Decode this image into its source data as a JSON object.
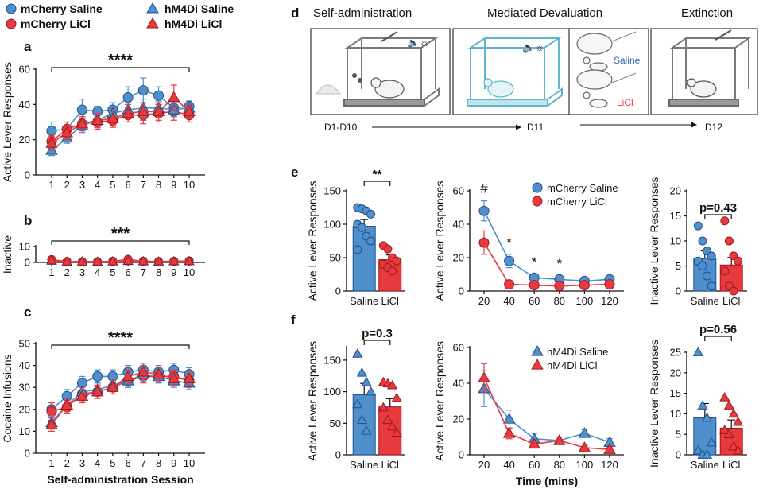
{
  "colors": {
    "blue": "#4f8fcc",
    "blue_dark": "#1f4f8a",
    "red": "#e8393f",
    "red_dark": "#9c1a1f",
    "panel_border": "#333333",
    "cage_gray": "#888888",
    "cage_teal": "#5fb7c9"
  },
  "legend": {
    "items": [
      {
        "label": "mCherry Saline",
        "marker": "circle",
        "color": "blue"
      },
      {
        "label": "mCherry LiCl",
        "marker": "circle",
        "color": "red"
      },
      {
        "label": "hM4Di Saline",
        "marker": "triangle",
        "color": "blue"
      },
      {
        "label": "hM4Di LiCl",
        "marker": "triangle",
        "color": "red"
      }
    ]
  },
  "panel_letters": {
    "a": "a",
    "b": "b",
    "c": "c",
    "d": "d",
    "e": "e",
    "f": "f"
  },
  "schematic": {
    "stages": [
      "Self-administration",
      "Mediated Devaluation",
      "Extinction"
    ],
    "outcomes": [
      "Saline",
      "LiCl"
    ],
    "timeline": [
      "D1-D10",
      "D11",
      "D12"
    ]
  },
  "chart_data": [
    {
      "id": "a",
      "type": "line",
      "ylabel": "Active Lever Responses",
      "xlabel": "",
      "x": [
        1,
        2,
        3,
        4,
        5,
        6,
        7,
        8,
        9,
        10
      ],
      "ylim": [
        0,
        60
      ],
      "yticks": [
        0,
        20,
        40,
        60
      ],
      "significance": "****",
      "series": [
        {
          "name": "mCherry Saline",
          "marker": "circle",
          "color": "blue",
          "values": [
            25,
            26,
            37,
            36,
            37,
            44,
            48,
            45,
            38,
            39
          ],
          "err": [
            5,
            4,
            6,
            3,
            4,
            6,
            7,
            5,
            5,
            3
          ]
        },
        {
          "name": "mCherry LiCl",
          "marker": "circle",
          "color": "red",
          "values": [
            19,
            26,
            29,
            30,
            31,
            34,
            34,
            35,
            36,
            34
          ],
          "err": [
            4,
            4,
            4,
            4,
            4,
            4,
            5,
            5,
            5,
            4
          ]
        },
        {
          "name": "hM4Di Saline",
          "marker": "triangle",
          "color": "blue",
          "values": [
            14,
            21,
            28,
            31,
            35,
            37,
            38,
            38,
            37,
            38
          ],
          "err": [
            3,
            3,
            4,
            4,
            4,
            4,
            5,
            4,
            4,
            3
          ]
        },
        {
          "name": "hM4Di LiCl",
          "marker": "triangle",
          "color": "red",
          "values": [
            18,
            24,
            29,
            31,
            32,
            35,
            36,
            36,
            44,
            36
          ],
          "err": [
            4,
            4,
            4,
            4,
            4,
            5,
            5,
            5,
            7,
            4
          ]
        }
      ]
    },
    {
      "id": "b",
      "type": "line",
      "ylabel": "Inactive",
      "xlabel": "",
      "x": [
        1,
        2,
        3,
        4,
        5,
        6,
        7,
        8,
        9,
        10
      ],
      "ylim": [
        0,
        10
      ],
      "yticks": [
        0,
        10
      ],
      "significance": "***",
      "series": [
        {
          "name": "mCherry Saline",
          "marker": "circle",
          "color": "blue",
          "values": [
            1.5,
            0.5,
            0.5,
            0.5,
            0.8,
            1.0,
            0.8,
            0.6,
            0.8,
            1.0
          ],
          "err": [
            0.5,
            0.3,
            0.3,
            0.3,
            0.3,
            0.4,
            0.3,
            0.3,
            0.3,
            0.4
          ]
        },
        {
          "name": "mCherry LiCl",
          "marker": "circle",
          "color": "red",
          "values": [
            1.8,
            0.6,
            0.4,
            0.4,
            0.6,
            2.0,
            0.6,
            0.5,
            0.6,
            0.8
          ],
          "err": [
            0.6,
            0.3,
            0.3,
            0.3,
            0.3,
            0.8,
            0.3,
            0.3,
            0.3,
            0.4
          ]
        },
        {
          "name": "hM4Di Saline",
          "marker": "triangle",
          "color": "blue",
          "values": [
            1.0,
            0.4,
            0.6,
            0.4,
            0.6,
            0.8,
            0.6,
            0.5,
            0.6,
            0.7
          ],
          "err": [
            0.4,
            0.3,
            0.3,
            0.3,
            0.3,
            0.3,
            0.3,
            0.3,
            0.3,
            0.3
          ]
        },
        {
          "name": "hM4Di LiCl",
          "marker": "triangle",
          "color": "red",
          "values": [
            1.2,
            0.5,
            0.5,
            0.5,
            0.6,
            0.9,
            0.7,
            0.6,
            0.7,
            0.8
          ],
          "err": [
            0.4,
            0.3,
            0.3,
            0.3,
            0.3,
            0.3,
            0.3,
            0.3,
            0.3,
            0.3
          ]
        }
      ]
    },
    {
      "id": "c",
      "type": "line",
      "ylabel": "Cocaine Infusions",
      "xlabel": "Self-administration Session",
      "x": [
        1,
        2,
        3,
        4,
        5,
        6,
        7,
        8,
        9,
        10
      ],
      "ylim": [
        0,
        50
      ],
      "yticks": [
        0,
        10,
        20,
        30,
        40,
        50
      ],
      "significance": "****",
      "series": [
        {
          "name": "mCherry Saline",
          "marker": "circle",
          "color": "blue",
          "values": [
            20,
            26,
            32,
            35,
            35,
            37,
            38,
            37,
            38,
            36
          ],
          "err": [
            3,
            3,
            3,
            3,
            3,
            3,
            3,
            3,
            3,
            3
          ]
        },
        {
          "name": "mCherry LiCl",
          "marker": "circle",
          "color": "red",
          "values": [
            19,
            21,
            27,
            28,
            30,
            33,
            35,
            35,
            35,
            33
          ],
          "err": [
            4,
            3,
            3,
            3,
            3,
            3,
            3,
            3,
            3,
            3
          ]
        },
        {
          "name": "hM4Di Saline",
          "marker": "triangle",
          "color": "blue",
          "values": [
            14,
            22,
            28,
            29,
            31,
            33,
            36,
            35,
            33,
            32
          ],
          "err": [
            3,
            3,
            3,
            3,
            3,
            3,
            3,
            3,
            3,
            3
          ]
        },
        {
          "name": "hM4Di LiCl",
          "marker": "triangle",
          "color": "red",
          "values": [
            13,
            22,
            26,
            28,
            30,
            35,
            37,
            36,
            34,
            34
          ],
          "err": [
            3,
            3,
            3,
            3,
            3,
            3,
            3,
            3,
            3,
            3
          ]
        }
      ]
    },
    {
      "id": "e1",
      "type": "bar",
      "ylabel": "Active Lever Responses",
      "categories": [
        "Saline",
        "LiCl"
      ],
      "ylim": [
        0,
        150
      ],
      "yticks": [
        0,
        50,
        100,
        150
      ],
      "significance": "**",
      "values": [
        97,
        47
      ],
      "err": [
        10,
        7
      ],
      "points": [
        [
          125,
          123,
          120,
          115,
          100,
          95,
          82,
          75,
          62
        ],
        [
          68,
          63,
          50,
          45,
          40,
          35,
          30
        ]
      ]
    },
    {
      "id": "e2",
      "type": "line",
      "ylabel": "Active Lever Responses",
      "x": [
        20,
        40,
        60,
        80,
        100,
        120
      ],
      "ylim": [
        0,
        60
      ],
      "yticks": [
        0,
        20,
        40,
        60
      ],
      "annotations": [
        {
          "x": 20,
          "text": "#"
        },
        {
          "x": 40,
          "text": "*"
        },
        {
          "x": 60,
          "text": "*"
        },
        {
          "x": 80,
          "text": "*"
        }
      ],
      "series": [
        {
          "name": "mCherry Saline",
          "marker": "circle",
          "color": "blue",
          "values": [
            48,
            18,
            8,
            7,
            6,
            7
          ],
          "err": [
            6,
            4,
            2,
            2,
            2,
            2
          ]
        },
        {
          "name": "mCherry LiCl",
          "marker": "circle",
          "color": "red",
          "values": [
            29,
            4,
            3.5,
            3,
            3.5,
            4
          ],
          "err": [
            7,
            1,
            1,
            1,
            1,
            1
          ]
        }
      ]
    },
    {
      "id": "e3",
      "type": "bar",
      "ylabel": "Inactive Lever Responses",
      "categories": [
        "Saline",
        "LiCl"
      ],
      "ylim": [
        0,
        20
      ],
      "yticks": [
        0,
        5,
        10,
        15,
        20
      ],
      "significance": "p=0.43",
      "values": [
        6.5,
        5.2
      ],
      "err": [
        1.5,
        1.5
      ],
      "points": [
        [
          13,
          10,
          8,
          7,
          6,
          5,
          3,
          1
        ],
        [
          14,
          10,
          7,
          6,
          4,
          1,
          0
        ]
      ]
    },
    {
      "id": "f1",
      "type": "bar",
      "ylabel": "Active Lever Responses",
      "categories": [
        "Saline",
        "LiCl"
      ],
      "ylim": [
        0,
        170
      ],
      "yticks": [
        0,
        50,
        100,
        150
      ],
      "significance": "p=0.3",
      "values": [
        95,
        76
      ],
      "err": [
        18,
        13
      ],
      "points": [
        [
          160,
          130,
          115,
          100,
          80,
          55,
          38
        ],
        [
          115,
          113,
          110,
          90,
          75,
          55,
          45,
          35
        ]
      ]
    },
    {
      "id": "f2",
      "type": "line",
      "ylabel": "Active Lever Responses",
      "xlabel": "Time (mins)",
      "x": [
        20,
        40,
        60,
        80,
        100,
        120
      ],
      "ylim": [
        0,
        60
      ],
      "yticks": [
        0,
        20,
        40,
        60
      ],
      "series": [
        {
          "name": "hM4Di Saline",
          "marker": "triangle",
          "color": "blue",
          "values": [
            37,
            20,
            9,
            8,
            12,
            7
          ],
          "err": [
            10,
            5,
            3,
            2,
            2,
            2
          ]
        },
        {
          "name": "hM4Di LiCl",
          "marker": "triangle",
          "color": "red",
          "values": [
            43,
            12,
            6,
            8,
            4,
            3
          ],
          "err": [
            8,
            3,
            2,
            2,
            1,
            1
          ]
        }
      ]
    },
    {
      "id": "f3",
      "type": "bar",
      "ylabel": "Inactive Lever Responses",
      "categories": [
        "Saline",
        "LiCl"
      ],
      "ylim": [
        0,
        25
      ],
      "yticks": [
        0,
        5,
        10,
        15,
        20,
        25
      ],
      "significance": "p=0.56",
      "values": [
        9,
        6.5
      ],
      "err": [
        3.5,
        2
      ],
      "points": [
        [
          25,
          12,
          9,
          3,
          1,
          0,
          0
        ],
        [
          14,
          12,
          10,
          8,
          6,
          5,
          2,
          1
        ]
      ]
    }
  ]
}
